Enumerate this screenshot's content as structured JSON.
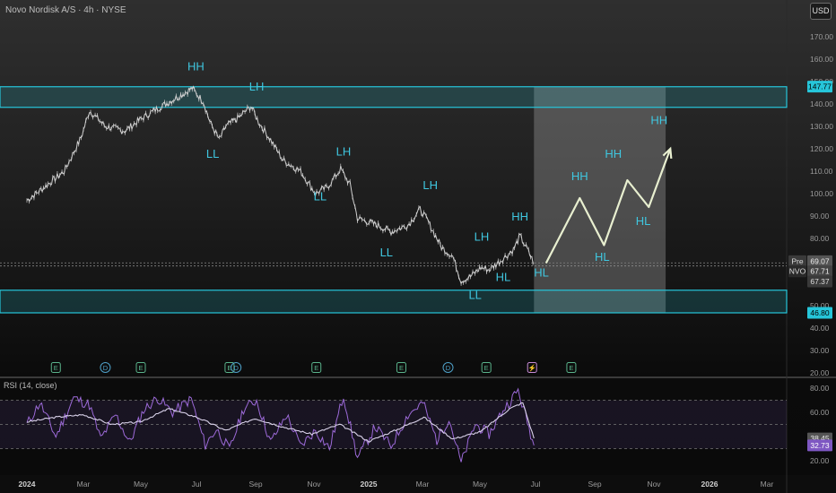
{
  "header": {
    "title": "Novo Nordisk A/S · 4h · NYSE",
    "currency": "USD"
  },
  "rsi": {
    "title": "RSI (14, close)"
  },
  "colors": {
    "zone": "#26c6da",
    "price": "#d0d0d0",
    "projection": "#e8efd0",
    "rsi_line": "#9c6ad8",
    "rsi_ma": "#d9d2ea",
    "rsi_band": "#5d4a7a",
    "label": "#3fc7e0"
  },
  "chart_data": [
    {
      "type": "line",
      "title": "Novo Nordisk A/S · 4h · NYSE",
      "xlabel": "",
      "ylabel": "",
      "x_ticks": [
        "2024",
        "Mar",
        "May",
        "Jul",
        "Sep",
        "Nov",
        "2025",
        "Mar",
        "May",
        "Jul",
        "Sep",
        "Nov",
        "2026",
        "Mar"
      ],
      "y_ticks": [
        20,
        30,
        40,
        50,
        60,
        70,
        80,
        90,
        100,
        110,
        120,
        130,
        140,
        150,
        160,
        170
      ],
      "ylim": [
        20,
        175
      ],
      "series": [
        {
          "values": [
            [
              "2024-01-01",
              97
            ],
            [
              "2024-01-20",
              103
            ],
            [
              "2024-02-10",
              110
            ],
            [
              "2024-02-28",
              125
            ],
            [
              "2024-03-08",
              137
            ],
            [
              "2024-03-25",
              130
            ],
            [
              "2024-04-15",
              128
            ],
            [
              "2024-05-01",
              133
            ],
            [
              "2024-05-20",
              138
            ],
            [
              "2024-06-10",
              143
            ],
            [
              "2024-06-26",
              147
            ],
            [
              "2024-07-08",
              141
            ],
            [
              "2024-07-15",
              132
            ],
            [
              "2024-07-25",
              124
            ],
            [
              "2024-08-01",
              130
            ],
            [
              "2024-08-15",
              134
            ],
            [
              "2024-08-28",
              139
            ],
            [
              "2024-09-05",
              132
            ],
            [
              "2024-09-18",
              124
            ],
            [
              "2024-10-01",
              115
            ],
            [
              "2024-10-20",
              110
            ],
            [
              "2024-11-05",
              100
            ],
            [
              "2024-11-18",
              103
            ],
            [
              "2024-12-02",
              111
            ],
            [
              "2024-12-12",
              104
            ],
            [
              "2024-12-20",
              89
            ],
            [
              "2025-01-10",
              86
            ],
            [
              "2025-01-25",
              83
            ],
            [
              "2025-02-12",
              86
            ],
            [
              "2025-02-25",
              93
            ],
            [
              "2025-03-05",
              88
            ],
            [
              "2025-03-20",
              76
            ],
            [
              "2025-04-01",
              72
            ],
            [
              "2025-04-10",
              61
            ],
            [
              "2025-04-20",
              63
            ],
            [
              "2025-05-01",
              67
            ],
            [
              "2025-05-10",
              66
            ],
            [
              "2025-05-22",
              70
            ],
            [
              "2025-06-05",
              75
            ],
            [
              "2025-06-12",
              81
            ],
            [
              "2025-06-20",
              75
            ],
            [
              "2025-06-27",
              69
            ]
          ]
        },
        {
          "name": "Projection",
          "values": [
            [
              "2025-07-10",
              69
            ],
            [
              "2025-08-15",
              98
            ],
            [
              "2025-09-10",
              77
            ],
            [
              "2025-10-05",
              106
            ],
            [
              "2025-10-28",
              94
            ],
            [
              "2025-11-20",
              120
            ]
          ]
        }
      ],
      "zones": [
        [
          138.5,
          147.7
        ],
        [
          46.8,
          56.9
        ]
      ],
      "projection_box": {
        "from": "2025-06-27",
        "to": "2025-11-15",
        "top": 147.7,
        "bottom": 46.8
      },
      "price_labels": {
        "top_zone": "147.77",
        "pre_name": "Pre",
        "pre": "69.07",
        "ticker": "NVO",
        "last": "67.71",
        "close": "67.37",
        "bottom_zone": "46.80"
      },
      "annotations": [
        {
          "text": "HH",
          "x": "2024-06-30",
          "y": 155
        },
        {
          "text": "LH",
          "x": "2024-09-03",
          "y": 146
        },
        {
          "text": "LL",
          "x": "2024-07-18",
          "y": 116
        },
        {
          "text": "LH",
          "x": "2024-12-05",
          "y": 117
        },
        {
          "text": "LL",
          "x": "2024-11-10",
          "y": 97
        },
        {
          "text": "LH",
          "x": "2025-03-08",
          "y": 102
        },
        {
          "text": "LL",
          "x": "2025-01-20",
          "y": 72
        },
        {
          "text": "LH",
          "x": "2025-05-02",
          "y": 79
        },
        {
          "text": "HH",
          "x": "2025-06-12",
          "y": 88
        },
        {
          "text": "LL",
          "x": "2025-04-25",
          "y": 53
        },
        {
          "text": "HL",
          "x": "2025-05-25",
          "y": 61
        },
        {
          "text": "HL",
          "x": "2025-07-05",
          "y": 63
        },
        {
          "text": "HH",
          "x": "2025-08-15",
          "y": 106
        },
        {
          "text": "HL",
          "x": "2025-09-08",
          "y": 70
        },
        {
          "text": "HH",
          "x": "2025-09-20",
          "y": 116
        },
        {
          "text": "HL",
          "x": "2025-10-22",
          "y": 86
        },
        {
          "text": "HH",
          "x": "2025-11-08",
          "y": 131
        }
      ],
      "events": [
        {
          "x": "2024-02-01",
          "icon": "E"
        },
        {
          "x": "2024-03-25",
          "icon": "D"
        },
        {
          "x": "2024-05-02",
          "icon": "E"
        },
        {
          "x": "2024-08-05",
          "icon": "E"
        },
        {
          "x": "2024-08-12",
          "icon": "D"
        },
        {
          "x": "2024-11-06",
          "icon": "E"
        },
        {
          "x": "2025-02-05",
          "icon": "E"
        },
        {
          "x": "2025-03-27",
          "icon": "D"
        },
        {
          "x": "2025-05-07",
          "icon": "E"
        },
        {
          "x": "2025-06-25",
          "icon": "⚡"
        },
        {
          "x": "2025-08-06",
          "icon": "E"
        }
      ]
    },
    {
      "type": "line",
      "title": "RSI (14, close)",
      "y_ticks": [
        20,
        40,
        60,
        80
      ],
      "ylim": [
        10,
        85
      ],
      "band": [
        30,
        70
      ],
      "current": {
        "rsi": "32.73",
        "ma": "38.45"
      },
      "series": [
        {
          "name": "RSI",
          "values": [
            [
              "2024-01-01",
              50
            ],
            [
              "2024-01-15",
              68
            ],
            [
              "2024-02-01",
              40
            ],
            [
              "2024-02-20",
              72
            ],
            [
              "2024-03-08",
              66
            ],
            [
              "2024-03-20",
              38
            ],
            [
              "2024-04-05",
              58
            ],
            [
              "2024-04-20",
              35
            ],
            [
              "2024-05-05",
              62
            ],
            [
              "2024-05-20",
              72
            ],
            [
              "2024-06-05",
              60
            ],
            [
              "2024-06-25",
              71
            ],
            [
              "2024-07-10",
              33
            ],
            [
              "2024-07-22",
              46
            ],
            [
              "2024-08-05",
              29
            ],
            [
              "2024-08-20",
              63
            ],
            [
              "2024-09-03",
              70
            ],
            [
              "2024-09-18",
              35
            ],
            [
              "2024-10-05",
              58
            ],
            [
              "2024-10-20",
              32
            ],
            [
              "2024-11-05",
              45
            ],
            [
              "2024-11-20",
              30
            ],
            [
              "2024-12-05",
              74
            ],
            [
              "2024-12-20",
              22
            ],
            [
              "2025-01-08",
              48
            ],
            [
              "2025-01-25",
              32
            ],
            [
              "2025-02-12",
              58
            ],
            [
              "2025-02-28",
              68
            ],
            [
              "2025-03-15",
              37
            ],
            [
              "2025-03-28",
              55
            ],
            [
              "2025-04-10",
              18
            ],
            [
              "2025-04-25",
              50
            ],
            [
              "2025-05-10",
              42
            ],
            [
              "2025-05-25",
              62
            ],
            [
              "2025-06-10",
              78
            ],
            [
              "2025-06-20",
              52
            ],
            [
              "2025-06-27",
              32.7
            ]
          ]
        },
        {
          "name": "RSI-based MA",
          "values": [
            [
              "2024-01-01",
              52
            ],
            [
              "2024-02-01",
              56
            ],
            [
              "2024-03-01",
              58
            ],
            [
              "2024-04-01",
              50
            ],
            [
              "2024-05-01",
              52
            ],
            [
              "2024-06-01",
              63
            ],
            [
              "2024-07-01",
              56
            ],
            [
              "2024-08-01",
              45
            ],
            [
              "2024-09-01",
              55
            ],
            [
              "2024-10-01",
              48
            ],
            [
              "2024-11-01",
              42
            ],
            [
              "2024-12-01",
              50
            ],
            [
              "2025-01-01",
              36
            ],
            [
              "2025-02-01",
              46
            ],
            [
              "2025-03-01",
              56
            ],
            [
              "2025-04-01",
              38
            ],
            [
              "2025-05-01",
              44
            ],
            [
              "2025-06-01",
              63
            ],
            [
              "2025-06-15",
              68
            ],
            [
              "2025-06-27",
              38.5
            ]
          ]
        }
      ]
    }
  ]
}
